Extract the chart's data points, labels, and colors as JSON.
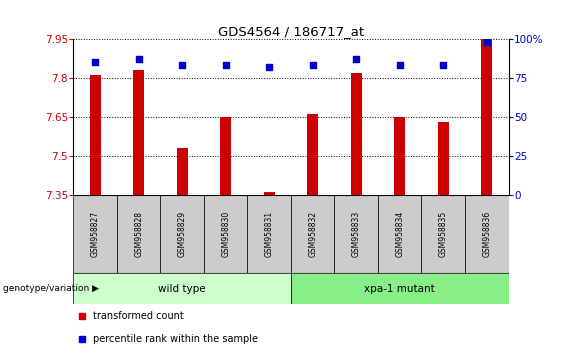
{
  "title": "GDS4564 / 186717_at",
  "samples": [
    "GSM958827",
    "GSM958828",
    "GSM958829",
    "GSM958830",
    "GSM958831",
    "GSM958832",
    "GSM958833",
    "GSM958834",
    "GSM958835",
    "GSM958836"
  ],
  "transformed_count": [
    7.81,
    7.83,
    7.53,
    7.65,
    7.36,
    7.66,
    7.82,
    7.65,
    7.63,
    7.95
  ],
  "percentile_rank": [
    85,
    87,
    83,
    83,
    82,
    83,
    87,
    83,
    83,
    98
  ],
  "ylim": [
    7.35,
    7.95
  ],
  "yticks": [
    7.35,
    7.5,
    7.65,
    7.8,
    7.95
  ],
  "right_ylim": [
    0,
    100
  ],
  "right_yticks": [
    0,
    25,
    50,
    75,
    100
  ],
  "right_yticklabels": [
    "0",
    "25",
    "50",
    "75",
    "100%"
  ],
  "bar_color": "#cc0000",
  "dot_color": "#0000cc",
  "grid_color": "#000000",
  "axis_color_left": "#cc0000",
  "axis_color_right": "#0000cc",
  "group_labels": [
    "wild type",
    "xpa-1 mutant"
  ],
  "group_ranges": [
    [
      0,
      4
    ],
    [
      5,
      9
    ]
  ],
  "group_colors_light": [
    "#ccffcc",
    "#88ee88"
  ],
  "legend_items": [
    "transformed count",
    "percentile rank within the sample"
  ],
  "legend_colors": [
    "#cc0000",
    "#0000cc"
  ],
  "genotype_label": "genotype/variation",
  "bar_width": 0.25,
  "dot_size": 25,
  "background_color": "#ffffff",
  "sample_box_color": "#cccccc",
  "figsize": [
    5.65,
    3.54
  ],
  "dpi": 100
}
